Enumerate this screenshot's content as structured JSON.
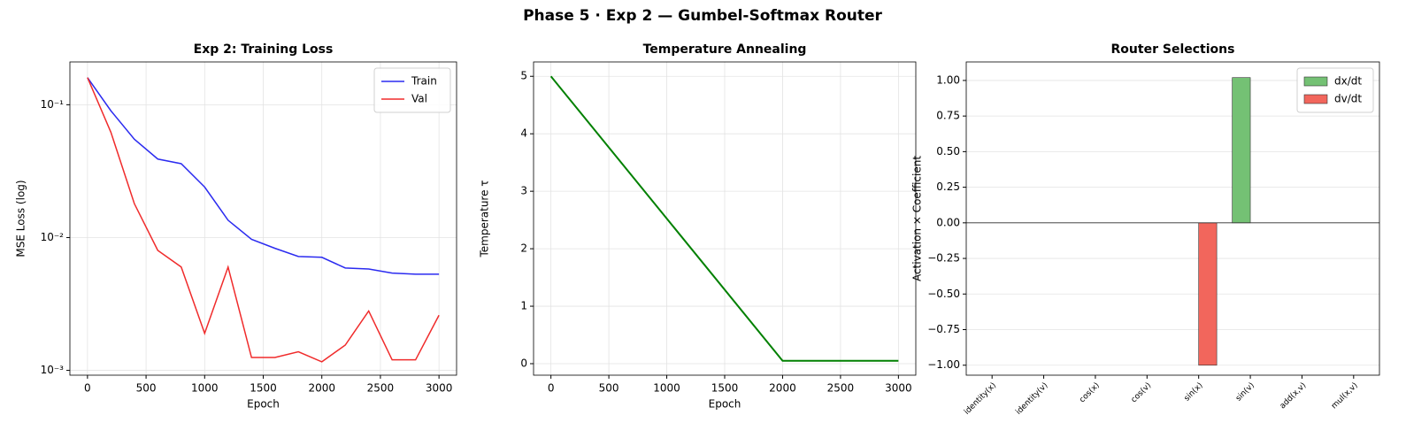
{
  "title": "Phase 5 · Exp 2 — Gumbel-Softmax Router",
  "chart_data": [
    {
      "type": "line",
      "title": "Exp 2: Training Loss",
      "xlabel": "Epoch",
      "ylabel": "MSE Loss (log)",
      "yscale": "log",
      "grid": true,
      "legend": "upper right",
      "x": [
        0,
        200,
        400,
        600,
        800,
        1000,
        1200,
        1400,
        1600,
        1800,
        2000,
        2200,
        2400,
        2600,
        2800,
        3000
      ],
      "series": [
        {
          "name": "Train",
          "color": "#2b2bf0",
          "values": [
            0.16,
            0.09,
            0.055,
            0.039,
            0.036,
            0.024,
            0.0135,
            0.0097,
            0.0083,
            0.0072,
            0.0071,
            0.0059,
            0.0058,
            0.0054,
            0.0053,
            0.0053
          ]
        },
        {
          "name": "Val",
          "color": "#f02b2b",
          "values": [
            0.16,
            0.062,
            0.018,
            0.008,
            0.006,
            0.0019,
            0.006,
            0.00125,
            0.00125,
            0.00138,
            0.00116,
            0.00155,
            0.0028,
            0.0012,
            0.0012,
            0.0026
          ]
        }
      ],
      "xlim": [
        -150,
        3150
      ],
      "xticks": [
        0,
        500,
        1000,
        1500,
        2000,
        2500,
        3000
      ],
      "ylim": [
        0.00092,
        0.21
      ],
      "yticks": [
        {
          "value": 0.001,
          "label": "10⁻³"
        },
        {
          "value": 0.01,
          "label": "10⁻²"
        },
        {
          "value": 0.1,
          "label": "10⁻¹"
        }
      ]
    },
    {
      "type": "line",
      "title": "Temperature Annealing",
      "xlabel": "Epoch",
      "ylabel": "Temperature τ",
      "grid": true,
      "color": "#008000",
      "x": [
        0,
        2000,
        3000
      ],
      "values": [
        5,
        0.05,
        0.05
      ],
      "xlim": [
        -150,
        3150
      ],
      "xticks": [
        0,
        500,
        1000,
        1500,
        2000,
        2500,
        3000
      ],
      "ylim": [
        -0.2,
        5.25
      ],
      "yticks": [
        0,
        1,
        2,
        3,
        4,
        5
      ]
    },
    {
      "type": "bar",
      "title": "Router Selections",
      "ylabel": "Activation × Coefficient",
      "grid": true,
      "legend": "upper right",
      "categories": [
        "identity(x)",
        "identity(v)",
        "cos(x)",
        "cos(v)",
        "sin(x)",
        "sin(v)",
        "add(x,v)",
        "mul(x,v)"
      ],
      "series": [
        {
          "name": "dx/dt",
          "color": "#74c174",
          "values": [
            0,
            0,
            0,
            0,
            0,
            1.02,
            0,
            0
          ]
        },
        {
          "name": "dv/dt",
          "color": "#f2665c",
          "values": [
            0,
            0,
            0,
            0,
            -1.0,
            0,
            0,
            0
          ]
        }
      ],
      "ylim": [
        -1.07,
        1.13
      ],
      "yticks": [
        {
          "value": -1,
          "label": "−1.00"
        },
        {
          "value": -0.75,
          "label": "−0.75"
        },
        {
          "value": -0.5,
          "label": "−0.50"
        },
        {
          "value": -0.25,
          "label": "−0.25"
        },
        {
          "value": 0,
          "label": "0.00"
        },
        {
          "value": 0.25,
          "label": "0.25"
        },
        {
          "value": 0.5,
          "label": "0.50"
        },
        {
          "value": 0.75,
          "label": "0.75"
        },
        {
          "value": 1,
          "label": "1.00"
        }
      ]
    }
  ]
}
